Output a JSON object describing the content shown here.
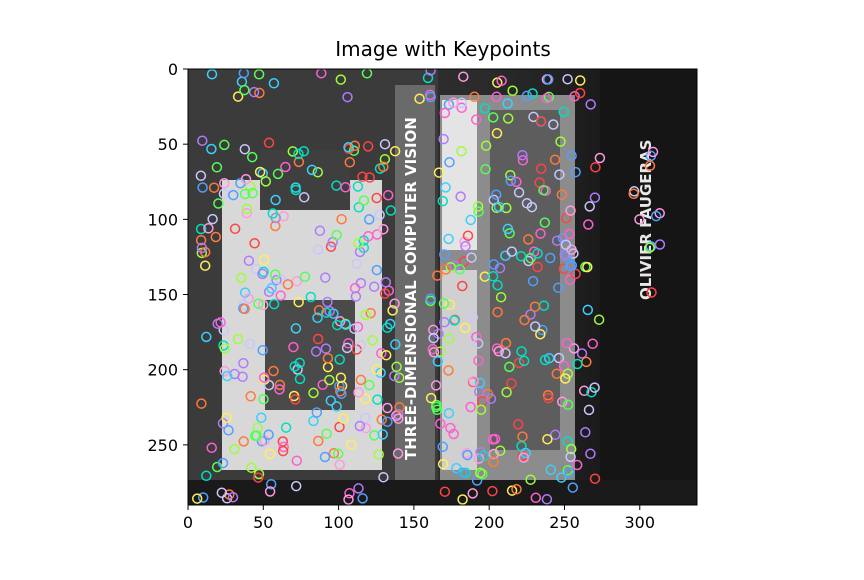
{
  "title": "Image with Keypoints",
  "axes": {
    "x": {
      "range": [
        0,
        338
      ],
      "ticks": [
        0,
        50,
        100,
        150,
        200,
        250,
        300
      ]
    },
    "y": {
      "range": [
        0,
        290
      ],
      "inverted": true,
      "ticks": [
        0,
        50,
        100,
        150,
        200,
        250
      ]
    }
  },
  "image_content": {
    "description_visible_text": [
      "THREE-DIMENSIONAL COMPUTER VISION",
      "OLIVIER FAUGERAS"
    ],
    "keypoint_marker": "circle",
    "keypoint_colors": [
      "#ff5fd2",
      "#55ff55",
      "#4fa0ff",
      "#ff7a3a",
      "#ffef5a",
      "#b07aff",
      "#00e0c0",
      "#ff4444",
      "#9cff3a",
      "#ff9ae0",
      "#3ad0ff",
      "#c8c8ff"
    ]
  }
}
